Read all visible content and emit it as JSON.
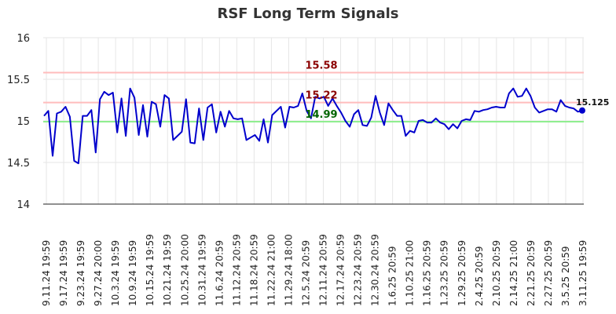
{
  "chart_data": {
    "type": "line",
    "title": "RSF Long Term Signals",
    "xlabel": "",
    "ylabel": "",
    "ylim": [
      14,
      16
    ],
    "yticks": [
      "14",
      "14.5",
      "15",
      "15.5",
      "16"
    ],
    "grid": true,
    "x_tick_labels": [
      "9.11.24 19:59",
      "9.17.24 19:59",
      "9.23.24 19:59",
      "9.27.24 20:00",
      "10.3.24 19:59",
      "10.9.24 19:59",
      "10.15.24 19:59",
      "10.21.24 19:59",
      "10.25.24 20:00",
      "10.31.24 19:59",
      "11.6.24 20:59",
      "11.12.24 20:59",
      "11.18.24 20:59",
      "11.22.24 21:00",
      "11.29.24 18:00",
      "12.5.24 20:59",
      "12.11.24 20:59",
      "12.17.24 20:59",
      "12.23.24 20:59",
      "12.30.24 20:59",
      "1.6.25 20:59",
      "1.10.25 21:00",
      "1.16.25 20:59",
      "1.23.25 20:59",
      "1.29.25 20:59",
      "2.4.25 20:59",
      "2.10.25 20:59",
      "2.14.25 21:00",
      "2.21.25 20:59",
      "2.27.25 20:59",
      "3.5.25 20:59",
      "3.11.25 19:59"
    ],
    "reference_lines": [
      {
        "value": 15.58,
        "label": "15.58",
        "color": "#ffbcbc",
        "label_color": "#8b0000"
      },
      {
        "value": 15.22,
        "label": "15.22",
        "color": "#ffbcbc",
        "label_color": "#8b0000"
      },
      {
        "value": 14.99,
        "label": "14.99",
        "color": "#90ee90",
        "label_color": "#006400"
      }
    ],
    "series": [
      {
        "color": "#0000cc",
        "values": [
          15.06,
          15.12,
          14.58,
          15.09,
          15.11,
          15.17,
          15.05,
          14.52,
          14.49,
          15.06,
          15.06,
          15.13,
          14.62,
          15.26,
          15.35,
          15.31,
          15.34,
          14.86,
          15.27,
          14.82,
          15.39,
          15.28,
          14.83,
          15.19,
          14.81,
          15.23,
          15.2,
          14.93,
          15.31,
          15.27,
          14.77,
          14.82,
          14.87,
          15.26,
          14.74,
          14.73,
          15.15,
          14.77,
          15.16,
          15.2,
          14.86,
          15.11,
          14.93,
          15.12,
          15.03,
          15.02,
          15.03,
          14.77,
          14.8,
          14.83,
          14.76,
          15.02,
          14.74,
          15.07,
          15.12,
          15.17,
          14.92,
          15.17,
          15.16,
          15.18,
          15.33,
          15.12,
          15.03,
          15.29,
          15.27,
          15.29,
          15.18,
          15.27,
          15.18,
          15.1,
          15.0,
          14.93,
          15.08,
          15.13,
          14.95,
          14.94,
          15.04,
          15.3,
          15.1,
          14.95,
          15.21,
          15.13,
          15.06,
          15.06,
          14.82,
          14.88,
          14.86,
          15.0,
          15.01,
          14.98,
          14.98,
          15.03,
          14.98,
          14.96,
          14.9,
          14.96,
          14.91,
          15.0,
          15.02,
          15.01,
          15.12,
          15.11,
          15.13,
          15.14,
          15.16,
          15.17,
          15.16,
          15.16,
          15.33,
          15.39,
          15.29,
          15.3,
          15.39,
          15.3,
          15.16,
          15.1,
          15.12,
          15.14,
          15.14,
          15.11,
          15.25,
          15.18,
          15.16,
          15.15,
          15.11,
          15.125
        ]
      }
    ],
    "last_value_label": "15.125"
  }
}
